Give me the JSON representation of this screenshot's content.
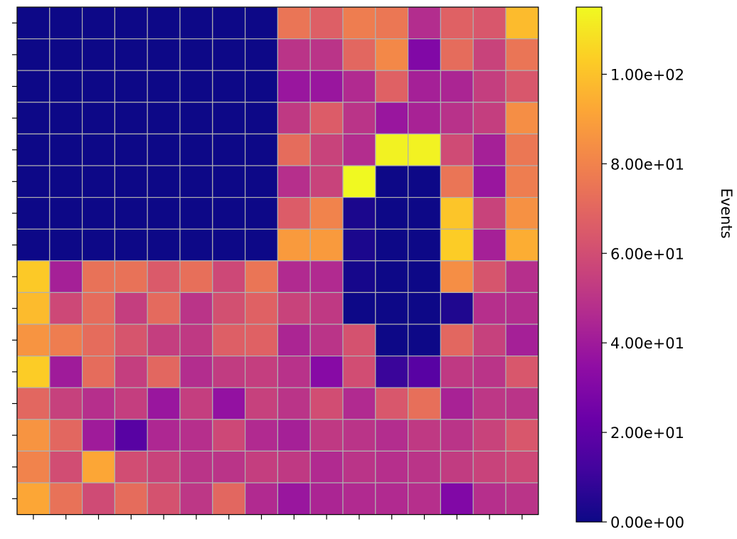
{
  "chart_data": {
    "type": "heatmap",
    "title": "",
    "xlabel": "",
    "ylabel": "",
    "x_tick_labels_shown": false,
    "y_tick_labels_shown": false,
    "grid": true,
    "cmap": "plasma",
    "rows": 16,
    "cols": 16,
    "values": [
      [
        0,
        0,
        0,
        0,
        0,
        0,
        0,
        0,
        75,
        67,
        78,
        76,
        47,
        68,
        64,
        98
      ],
      [
        0,
        0,
        0,
        0,
        0,
        0,
        0,
        0,
        50,
        50,
        70,
        82,
        30,
        72,
        56,
        75
      ],
      [
        0,
        0,
        0,
        0,
        0,
        0,
        0,
        0,
        38,
        38,
        46,
        68,
        42,
        44,
        54,
        64
      ],
      [
        0,
        0,
        0,
        0,
        0,
        0,
        0,
        0,
        52,
        66,
        50,
        38,
        43,
        49,
        54,
        84
      ],
      [
        0,
        0,
        0,
        0,
        0,
        0,
        0,
        0,
        72,
        56,
        47,
        113,
        113,
        59,
        42,
        76
      ],
      [
        0,
        0,
        0,
        0,
        0,
        0,
        0,
        0,
        48,
        56,
        115,
        0,
        0,
        75,
        38,
        78
      ],
      [
        0,
        0,
        0,
        0,
        0,
        0,
        0,
        0,
        66,
        80,
        3,
        0,
        0,
        101,
        56,
        85
      ],
      [
        0,
        0,
        0,
        0,
        0,
        0,
        0,
        0,
        88,
        88,
        3,
        0,
        0,
        103,
        42,
        94
      ],
      [
        102,
        42,
        74,
        74,
        65,
        73,
        58,
        75,
        46,
        46,
        2,
        0,
        0,
        84,
        63,
        48
      ],
      [
        98,
        58,
        72,
        54,
        71,
        50,
        61,
        68,
        56,
        52,
        0,
        0,
        0,
        4,
        48,
        47
      ],
      [
        86,
        78,
        72,
        63,
        54,
        52,
        67,
        68,
        44,
        50,
        62,
        0,
        0,
        70,
        55,
        42
      ],
      [
        103,
        40,
        72,
        54,
        70,
        47,
        53,
        54,
        49,
        32,
        60,
        10,
        18,
        52,
        50,
        64
      ],
      [
        70,
        55,
        48,
        54,
        38,
        54,
        36,
        55,
        50,
        60,
        46,
        64,
        73,
        43,
        51,
        50
      ],
      [
        86,
        70,
        40,
        18,
        45,
        48,
        58,
        46,
        42,
        52,
        50,
        47,
        52,
        50,
        56,
        64
      ],
      [
        80,
        60,
        92,
        60,
        56,
        50,
        50,
        54,
        52,
        46,
        50,
        48,
        50,
        53,
        56,
        58
      ],
      [
        92,
        74,
        59,
        72,
        62,
        51,
        70,
        46,
        38,
        44,
        46,
        46,
        48,
        30,
        48,
        50
      ]
    ],
    "colorbar": {
      "label": "Events",
      "min": 0,
      "max": 115,
      "ticks": [
        0,
        20,
        40,
        60,
        80,
        100
      ],
      "tick_labels": [
        "0.00e+00",
        "2.00e+01",
        "4.00e+01",
        "6.00e+01",
        "8.00e+01",
        "1.00e+02"
      ]
    }
  }
}
